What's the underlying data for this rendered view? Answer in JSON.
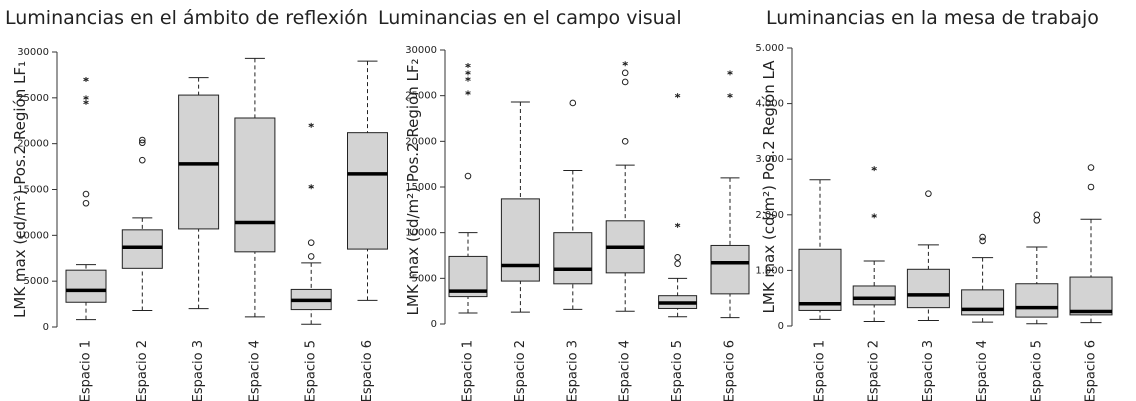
{
  "chart_data": [
    {
      "type": "box",
      "title": "Luminancias en el ámbito de reflexión",
      "y_label": "LMK max (cd/m²) Pos.2 Región LF₁",
      "categories": [
        "Espacio 1",
        "Espacio 2",
        "Espacio 3",
        "Espacio 4",
        "Espacio 5",
        "Espacio 6"
      ],
      "boxes": [
        {
          "low": 800,
          "q1": 2700,
          "median": 4000,
          "q3": 6200,
          "high": 6800,
          "outliers": [
            13500,
            14500
          ],
          "extremes": [
            24500,
            25000,
            27000
          ]
        },
        {
          "low": 1800,
          "q1": 6400,
          "median": 8700,
          "q3": 10600,
          "high": 11900,
          "outliers": [
            18200,
            20100,
            20400
          ],
          "extremes": []
        },
        {
          "low": 2000,
          "q1": 10700,
          "median": 17800,
          "q3": 25300,
          "high": 27200,
          "outliers": [],
          "extremes": []
        },
        {
          "low": 1100,
          "q1": 8200,
          "median": 11400,
          "q3": 22800,
          "high": 29300,
          "outliers": [],
          "extremes": []
        },
        {
          "low": 300,
          "q1": 1900,
          "median": 2900,
          "q3": 4100,
          "high": 7000,
          "outliers": [
            7700,
            9200
          ],
          "extremes": [
            15300,
            22000
          ]
        },
        {
          "low": 2900,
          "q1": 8500,
          "median": 16700,
          "q3": 21200,
          "high": 29000,
          "outliers": [],
          "extremes": []
        }
      ],
      "color": "#d3d3d3",
      "ylim": [
        0,
        30000
      ],
      "yticks": [
        0,
        5000,
        10000,
        15000,
        20000,
        25000,
        30000
      ]
    },
    {
      "type": "box",
      "title": "Luminancias en el campo visual",
      "y_label": "LMK max (cd/m²) Pos.2 Región LF₂",
      "categories": [
        "Espacio 1",
        "Espacio 2",
        "Espacio 3",
        "Espacio 4",
        "Espacio 5",
        "Espacio 6"
      ],
      "boxes": [
        {
          "low": 1200,
          "q1": 3000,
          "median": 3600,
          "q3": 7400,
          "high": 10000,
          "outliers": [
            16200
          ],
          "extremes": [
            25300,
            26800,
            27500,
            28300
          ]
        },
        {
          "low": 1300,
          "q1": 4700,
          "median": 6400,
          "q3": 13700,
          "high": 24300,
          "outliers": [],
          "extremes": []
        },
        {
          "low": 1600,
          "q1": 4400,
          "median": 6000,
          "q3": 10000,
          "high": 16800,
          "outliers": [
            24200
          ],
          "extremes": []
        },
        {
          "low": 1400,
          "q1": 5600,
          "median": 8400,
          "q3": 11300,
          "high": 17400,
          "outliers": [
            20000,
            26500,
            27500
          ],
          "extremes": [
            28500
          ]
        },
        {
          "low": 800,
          "q1": 1700,
          "median": 2300,
          "q3": 3100,
          "high": 5000,
          "outliers": [
            6600,
            7300
          ],
          "extremes": [
            10800,
            25000
          ]
        },
        {
          "low": 700,
          "q1": 3300,
          "median": 6700,
          "q3": 8600,
          "high": 16000,
          "outliers": [],
          "extremes": [
            25000,
            27500
          ]
        }
      ],
      "color": "#d3d3d3",
      "ylim": [
        0,
        30000
      ],
      "yticks": [
        0,
        5000,
        10000,
        15000,
        20000,
        25000,
        30000
      ]
    },
    {
      "type": "box",
      "title": "Luminancias en la mesa de trabajo",
      "y_label": "LMK max (cd/m²) Pos.2 Región LA",
      "categories": [
        "Espacio 1",
        "Espacio 2",
        "Espacio 3",
        "Espacio 4",
        "Espacio 5",
        "Espacio 6"
      ],
      "boxes": [
        {
          "low": 120,
          "q1": 280,
          "median": 400,
          "q3": 1380,
          "high": 2630,
          "outliers": [],
          "extremes": []
        },
        {
          "low": 80,
          "q1": 380,
          "median": 500,
          "q3": 720,
          "high": 1170,
          "outliers": [],
          "extremes": [
            1980,
            2830
          ]
        },
        {
          "low": 100,
          "q1": 330,
          "median": 560,
          "q3": 1020,
          "high": 1460,
          "outliers": [
            2380
          ],
          "extremes": []
        },
        {
          "low": 70,
          "q1": 200,
          "median": 300,
          "q3": 650,
          "high": 1230,
          "outliers": [
            1530,
            1600
          ],
          "extremes": []
        },
        {
          "low": 40,
          "q1": 160,
          "median": 330,
          "q3": 760,
          "high": 1420,
          "outliers": [
            1900,
            2000
          ],
          "extremes": []
        },
        {
          "low": 60,
          "q1": 200,
          "median": 260,
          "q3": 880,
          "high": 1920,
          "outliers": [
            2500,
            2850
          ],
          "extremes": []
        }
      ],
      "color": "#d3d3d3",
      "ylim": [
        0,
        5000
      ],
      "yticks": [
        0,
        {
          "value": 1000,
          "label": "1.000"
        },
        {
          "value": 2000,
          "label": "2.000"
        },
        {
          "value": 3000,
          "label": "3.000"
        },
        {
          "value": 4000,
          "label": "4.000"
        },
        {
          "value": 5000,
          "label": "5.000"
        }
      ]
    }
  ]
}
